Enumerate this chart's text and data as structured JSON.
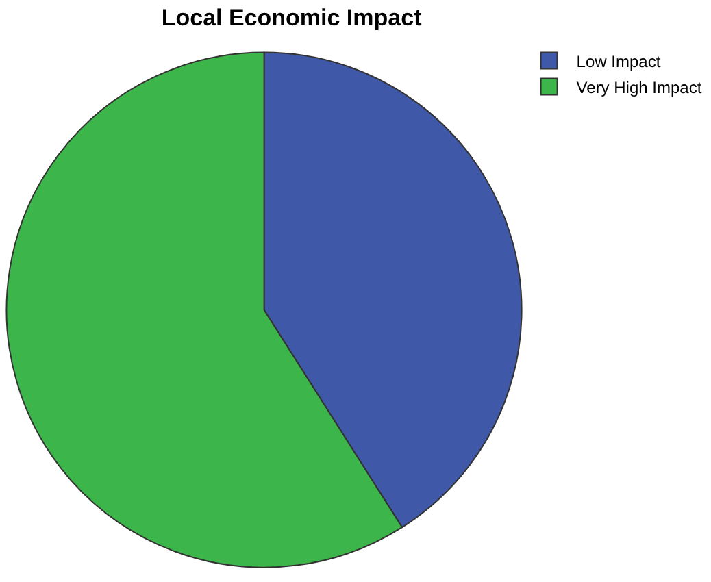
{
  "chart_data": {
    "type": "pie",
    "title": "Local Economic Impact",
    "categories": [
      "Low Impact",
      "Very High Impact"
    ],
    "values": [
      41,
      59
    ],
    "colors": [
      "#3f58a8",
      "#3cb54a"
    ],
    "legend": "top right"
  }
}
